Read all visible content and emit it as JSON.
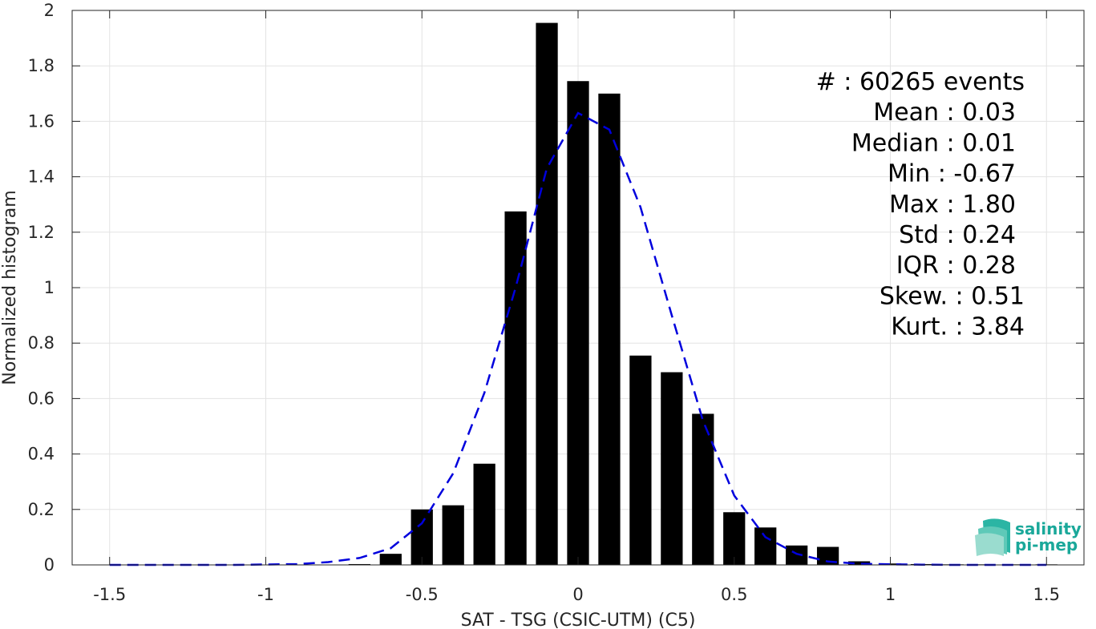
{
  "chart_data": {
    "type": "bar",
    "xlabel": "SAT - TSG (CSIC-UTM) (C5)",
    "ylabel": "Normalized histogram",
    "xlim": [
      -1.62,
      1.62
    ],
    "ylim": [
      0,
      2
    ],
    "x_ticks": [
      -1.5,
      -1,
      -0.5,
      0,
      0.5,
      1,
      1.5
    ],
    "x_tick_labels": [
      "-1.5",
      "-1",
      "-0.5",
      "0",
      "0.5",
      "1",
      "1.5"
    ],
    "y_ticks": [
      0,
      0.2,
      0.4,
      0.6,
      0.8,
      1,
      1.2,
      1.4,
      1.6,
      1.8,
      2
    ],
    "y_tick_labels": [
      "0",
      "0.2",
      "0.4",
      "0.6",
      "0.8",
      "1",
      "1.2",
      "1.4",
      "1.6",
      "1.8",
      "2"
    ],
    "grid": true,
    "bar_width": 0.07,
    "bars": {
      "x": [
        -0.7,
        -0.6,
        -0.5,
        -0.4,
        -0.3,
        -0.2,
        -0.1,
        0.0,
        0.1,
        0.2,
        0.3,
        0.4,
        0.5,
        0.6,
        0.7,
        0.8,
        0.9,
        1.0,
        1.1,
        1.2,
        1.3,
        1.4,
        1.5
      ],
      "values": [
        0.003,
        0.04,
        0.2,
        0.215,
        0.365,
        1.275,
        1.955,
        1.745,
        1.7,
        0.755,
        0.695,
        0.545,
        0.19,
        0.135,
        0.07,
        0.065,
        0.013,
        0.005,
        0.003,
        0.002,
        0.002,
        0.002,
        0.002
      ],
      "color": "#000000"
    },
    "fit_curve": {
      "style": "dashed",
      "color": "#0000dd",
      "x": [
        -1.5,
        -1.3,
        -1.1,
        -0.9,
        -0.8,
        -0.7,
        -0.6,
        -0.5,
        -0.4,
        -0.3,
        -0.2,
        -0.1,
        0.0,
        0.1,
        0.2,
        0.3,
        0.4,
        0.5,
        0.6,
        0.7,
        0.8,
        0.9,
        1.0,
        1.1,
        1.2,
        1.3,
        1.4,
        1.5
      ],
      "y": [
        0.0,
        0.0,
        0.0,
        0.003,
        0.01,
        0.025,
        0.06,
        0.15,
        0.33,
        0.62,
        1.0,
        1.43,
        1.63,
        1.57,
        1.29,
        0.9,
        0.52,
        0.25,
        0.1,
        0.04,
        0.012,
        0.004,
        0.002,
        0.001,
        0.0,
        0.0,
        0.0,
        0.0
      ]
    },
    "stats_lines": [
      "#  : 60265 events",
      "Mean : 0.03",
      "Median : 0.01",
      "Min : -0.67",
      "Max : 1.80",
      "Std : 0.24",
      "IQR : 0.28",
      "Skew. : 0.51",
      "Kurt. : 3.84"
    ]
  },
  "logo": {
    "line1": "salinity",
    "line2": "pi-mep",
    "color": "#1aa89a"
  }
}
